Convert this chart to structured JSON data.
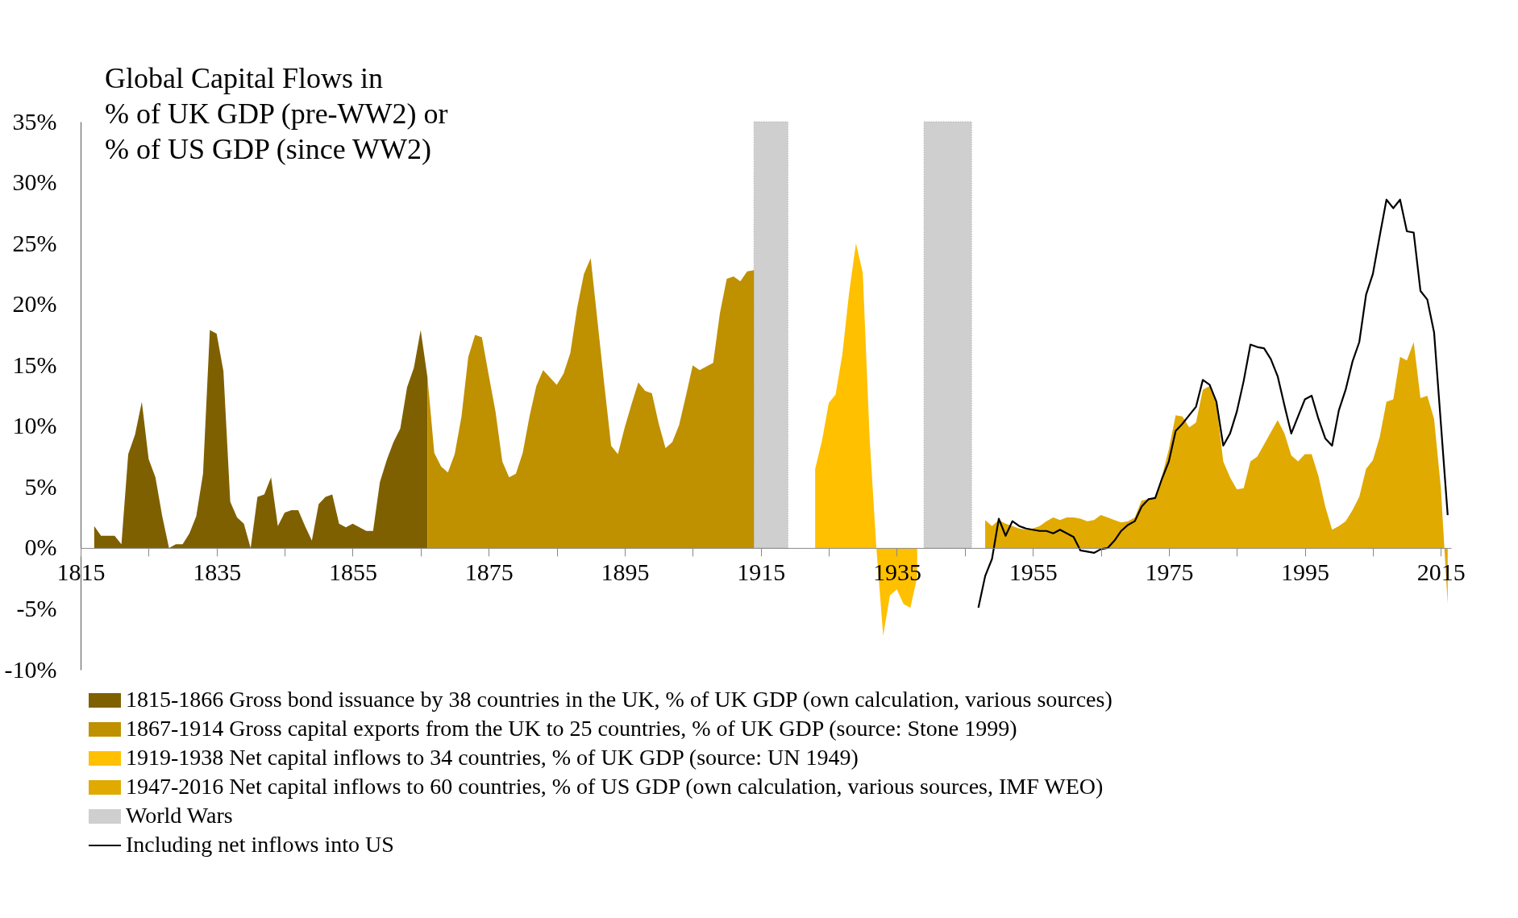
{
  "chart_data": {
    "type": "area",
    "title": "Global Capital Flows in\n% of UK GDP (pre-WW2) or\n% of US GDP (since WW2)",
    "xlim": [
      1815,
      2016.5
    ],
    "ylim": [
      -10,
      35
    ],
    "xticks": [
      1815,
      {
        "value": 1825,
        "label": null
      },
      1835,
      {
        "value": 1845,
        "label": null
      },
      1855,
      {
        "value": 1865,
        "label": null
      },
      1875,
      {
        "value": 1885,
        "label": null
      },
      1895,
      {
        "value": 1905,
        "label": null
      },
      1915,
      {
        "value": 1925,
        "label": null
      },
      1935,
      {
        "value": 1945,
        "label": null
      },
      1955,
      {
        "value": 1965,
        "label": null
      },
      1975,
      {
        "value": 1985,
        "label": null
      },
      1995,
      {
        "value": 2005,
        "label": null
      },
      2015
    ],
    "yticks": [
      {
        "value": -10,
        "label": "-10%"
      },
      {
        "value": -5,
        "label": "-5%"
      },
      {
        "value": 0,
        "label": "0%"
      },
      {
        "value": 5,
        "label": "5%"
      },
      {
        "value": 10,
        "label": "10%"
      },
      {
        "value": 15,
        "label": "15%"
      },
      {
        "value": 20,
        "label": "20%"
      },
      {
        "value": 25,
        "label": "25%"
      },
      {
        "value": 30,
        "label": "30%"
      },
      {
        "value": 35,
        "label": "35%"
      }
    ],
    "grid": false,
    "legend": "bottom",
    "bands": [
      {
        "axis": "x",
        "from": 1914,
        "to": 1919,
        "label": "World Wars",
        "color": "#cfcfcf"
      },
      {
        "axis": "x",
        "from": 1939,
        "to": 1946,
        "color": "#cfcfcf"
      }
    ],
    "series": [
      {
        "name": "1815-1866 Gross bond issuance by 38 countries in the UK, % of UK GDP (own calculation, various sources)",
        "color": "#7f6000",
        "x": [
          1817,
          1818,
          1819,
          1820,
          1821,
          1822,
          1823,
          1824,
          1825,
          1826,
          1827,
          1828,
          1829,
          1830,
          1831,
          1832,
          1833,
          1834,
          1835,
          1836,
          1837,
          1838,
          1839,
          1840,
          1841,
          1842,
          1843,
          1844,
          1845,
          1846,
          1847,
          1848,
          1849,
          1850,
          1851,
          1852,
          1853,
          1854,
          1855,
          1856,
          1857,
          1858,
          1859,
          1860,
          1861,
          1862,
          1863,
          1864,
          1865,
          1866
        ],
        "values": [
          1.8,
          1.0,
          1.0,
          1.0,
          0.3,
          7.7,
          9.3,
          12.0,
          7.3,
          5.8,
          2.6,
          0.0,
          0.3,
          0.3,
          1.2,
          2.6,
          6.1,
          17.9,
          17.6,
          14.5,
          3.8,
          2.5,
          2.0,
          0.0,
          4.2,
          4.4,
          5.8,
          1.8,
          2.9,
          3.1,
          3.1,
          1.8,
          0.6,
          3.6,
          4.2,
          4.4,
          2.0,
          1.7,
          2.0,
          1.7,
          1.4,
          1.4,
          5.4,
          7.2,
          8.7,
          9.8,
          13.2,
          14.8,
          17.9,
          14.0
        ]
      },
      {
        "name": "1867-1914 Gross capital exports from the UK to 25 countries, % of UK GDP (source: Stone 1999)",
        "color": "#bf9000",
        "x": [
          1866,
          1867,
          1868,
          1869,
          1870,
          1871,
          1872,
          1873,
          1874,
          1875,
          1876,
          1877,
          1878,
          1879,
          1880,
          1881,
          1882,
          1883,
          1884,
          1885,
          1886,
          1887,
          1888,
          1889,
          1890,
          1891,
          1892,
          1893,
          1894,
          1895,
          1896,
          1897,
          1898,
          1899,
          1900,
          1901,
          1902,
          1903,
          1904,
          1905,
          1906,
          1907,
          1908,
          1909,
          1910,
          1911,
          1912,
          1913,
          1914
        ],
        "values": [
          14.0,
          7.8,
          6.7,
          6.2,
          7.7,
          10.8,
          15.7,
          17.5,
          17.3,
          14.2,
          11.2,
          7.1,
          5.8,
          6.1,
          7.8,
          10.8,
          13.3,
          14.6,
          14.0,
          13.4,
          14.3,
          16.0,
          19.7,
          22.5,
          23.8,
          18.6,
          13.4,
          8.4,
          7.7,
          9.9,
          11.8,
          13.6,
          12.9,
          12.7,
          10.2,
          8.2,
          8.7,
          10.1,
          12.5,
          15.0,
          14.6,
          14.9,
          15.2,
          19.3,
          22.1,
          22.3,
          21.9,
          22.7,
          22.8
        ]
      },
      {
        "name": "1919-1938 Net capital inflows to 34 countries, % of UK GDP (source: UN 1949)",
        "color": "#ffc000",
        "x": [
          1923,
          1924,
          1925,
          1926,
          1927,
          1928,
          1929,
          1930,
          1931,
          1932,
          1933,
          1934,
          1935,
          1936,
          1937,
          1938
        ],
        "values": [
          6.5,
          8.8,
          11.9,
          12.6,
          15.9,
          21.0,
          25.0,
          22.6,
          9.1,
          0.0,
          -7.2,
          -3.9,
          -3.4,
          -4.6,
          -4.9,
          -2.4
        ]
      },
      {
        "name": "1947-2016 Net capital inflows to 60 countries, % of US GDP (own calculation, various sources, IMF WEO)",
        "color": "#e0aa00",
        "x": [
          1948,
          1949,
          1950,
          1951,
          1952,
          1953,
          1954,
          1955,
          1956,
          1957,
          1958,
          1959,
          1960,
          1961,
          1962,
          1963,
          1964,
          1965,
          1966,
          1967,
          1968,
          1969,
          1970,
          1971,
          1972,
          1973,
          1974,
          1975,
          1976,
          1977,
          1978,
          1979,
          1980,
          1981,
          1982,
          1983,
          1984,
          1985,
          1986,
          1987,
          1988,
          1989,
          1990,
          1991,
          1992,
          1993,
          1994,
          1995,
          1996,
          1997,
          1998,
          1999,
          2000,
          2001,
          2002,
          2003,
          2004,
          2005,
          2006,
          2007,
          2008,
          2009,
          2010,
          2011,
          2012,
          2013,
          2014,
          2015,
          2016
        ],
        "values": [
          2.3,
          1.8,
          2.3,
          2.0,
          1.8,
          1.6,
          1.5,
          1.6,
          1.8,
          2.2,
          2.5,
          2.3,
          2.5,
          2.5,
          2.4,
          2.2,
          2.3,
          2.7,
          2.5,
          2.3,
          2.1,
          2.2,
          2.5,
          3.9,
          4.0,
          4.1,
          5.9,
          8.1,
          10.9,
          10.8,
          9.9,
          10.3,
          13.0,
          13.3,
          11.8,
          7.1,
          5.8,
          4.8,
          4.9,
          7.1,
          7.5,
          8.5,
          9.5,
          10.5,
          9.4,
          7.6,
          7.1,
          7.7,
          7.7,
          5.9,
          3.4,
          1.5,
          1.8,
          2.2,
          3.1,
          4.2,
          6.5,
          7.2,
          9.1,
          12.0,
          12.2,
          15.7,
          15.4,
          16.9,
          12.3,
          12.5,
          10.6,
          4.9,
          -4.6
        ]
      },
      {
        "name": "Including net inflows into US",
        "type": "line",
        "color": "#000000",
        "x": [
          1947,
          1948,
          1949,
          1950,
          1951,
          1952,
          1953,
          1954,
          1955,
          1956,
          1957,
          1958,
          1959,
          1960,
          1961,
          1962,
          1963,
          1964,
          1965,
          1966,
          1967,
          1968,
          1969,
          1970,
          1971,
          1972,
          1973,
          1974,
          1975,
          1976,
          1977,
          1978,
          1979,
          1980,
          1981,
          1982,
          1983,
          1984,
          1985,
          1986,
          1987,
          1988,
          1989,
          1990,
          1991,
          1992,
          1993,
          1994,
          1995,
          1996,
          1997,
          1998,
          1999,
          2000,
          2001,
          2002,
          2003,
          2004,
          2005,
          2006,
          2007,
          2008,
          2009,
          2010,
          2011,
          2012,
          2013,
          2014,
          2015,
          2016
        ],
        "values": [
          -4.9,
          -2.3,
          -0.9,
          2.4,
          1.0,
          2.2,
          1.8,
          1.6,
          1.5,
          1.4,
          1.4,
          1.2,
          1.5,
          1.2,
          0.9,
          -0.2,
          -0.3,
          -0.4,
          -0.1,
          0.0,
          0.6,
          1.4,
          1.9,
          2.2,
          3.4,
          4.0,
          4.1,
          5.7,
          7.1,
          9.6,
          10.2,
          10.9,
          11.6,
          13.8,
          13.4,
          12.0,
          8.4,
          9.4,
          11.2,
          13.7,
          16.7,
          16.5,
          16.4,
          15.5,
          14.1,
          11.7,
          9.4,
          10.8,
          12.2,
          12.5,
          10.6,
          9.0,
          8.4,
          11.3,
          13.0,
          15.3,
          16.9,
          20.8,
          22.5,
          25.6,
          28.6,
          27.9,
          28.6,
          26.0,
          25.9,
          21.1,
          20.4,
          17.7,
          10.2,
          2.7
        ]
      }
    ]
  }
}
